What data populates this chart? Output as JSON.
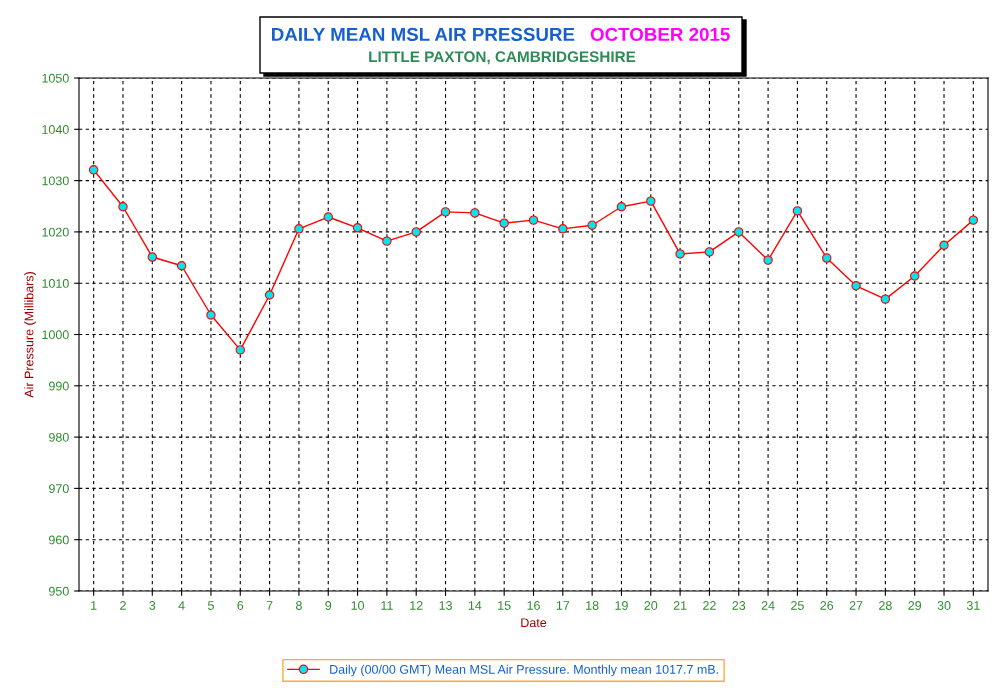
{
  "chart_data": {
    "type": "line",
    "title": "DAILY MEAN MSL AIR PRESSURE",
    "subtitle": "LITTLE PAXTON, CAMBRIDGESHIRE",
    "annotations": [
      "OCTOBER 2015"
    ],
    "xlabel": "Date",
    "ylabel": "Air Pressure (Millibars)",
    "categories": [
      "1",
      "2",
      "3",
      "4",
      "5",
      "6",
      "7",
      "8",
      "9",
      "10",
      "11",
      "12",
      "13",
      "14",
      "15",
      "16",
      "17",
      "18",
      "19",
      "20",
      "21",
      "22",
      "23",
      "24",
      "25",
      "26",
      "27",
      "28",
      "29",
      "30",
      "31"
    ],
    "series": [
      {
        "name": "Daily (00/00 GMT) Mean MSL Air Pressure. Monthly mean 1017.7 mB.",
        "color": "#ff0000",
        "values": [
          1032.1,
          1024.9,
          1015.1,
          1013.4,
          1003.8,
          997.0,
          1007.7,
          1020.6,
          1022.9,
          1020.8,
          1018.2,
          1020.0,
          1023.9,
          1023.7,
          1021.7,
          1022.3,
          1020.6,
          1021.3,
          1024.9,
          1026.0,
          1015.7,
          1016.1,
          1020.0,
          1014.5,
          1024.1,
          1014.9,
          1009.5,
          1006.9,
          1011.4,
          1017.4,
          1022.3
        ]
      }
    ],
    "ylim": [
      950,
      1050
    ],
    "yticks": [
      950,
      960,
      970,
      980,
      990,
      1000,
      1010,
      1020,
      1030,
      1040,
      1050
    ],
    "grid": true,
    "legend": "bottom",
    "marker": "circle",
    "line_style": "solid"
  }
}
